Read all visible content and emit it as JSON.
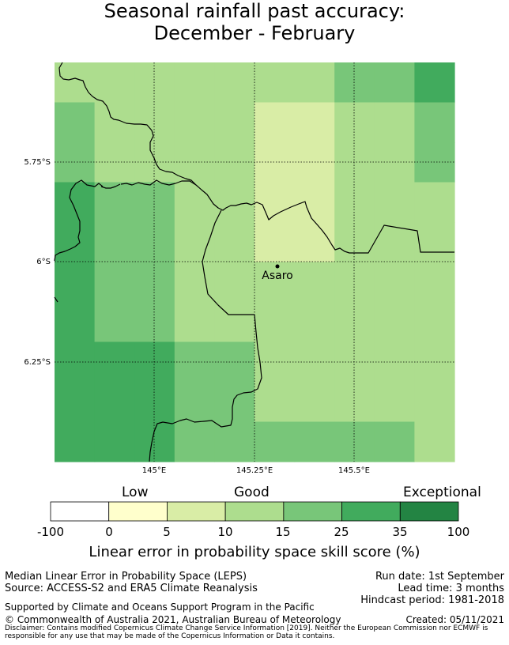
{
  "title": {
    "line1": "Seasonal rainfall past accuracy:",
    "line2": "December - February"
  },
  "map": {
    "axes": {
      "x_ticks": [
        "145°E",
        "145.25°E",
        "145.5°E"
      ],
      "y_ticks": [
        "5.75°S",
        "6°S",
        "6.25°S"
      ]
    },
    "place": {
      "name": "Asaro"
    },
    "grid_cells": {
      "cols": 10,
      "rows": 10,
      "values": [
        [
          10,
          10,
          10,
          10,
          10,
          10,
          10,
          15,
          15,
          25
        ],
        [
          15,
          10,
          10,
          10,
          10,
          5,
          5,
          10,
          10,
          15
        ],
        [
          15,
          10,
          10,
          10,
          10,
          5,
          5,
          10,
          10,
          15
        ],
        [
          25,
          15,
          15,
          10,
          10,
          5,
          5,
          10,
          10,
          10
        ],
        [
          25,
          15,
          15,
          10,
          10,
          5,
          5,
          10,
          10,
          10
        ],
        [
          25,
          15,
          15,
          10,
          10,
          10,
          10,
          10,
          10,
          10
        ],
        [
          25,
          15,
          15,
          10,
          10,
          10,
          10,
          10,
          10,
          10
        ],
        [
          25,
          25,
          25,
          15,
          15,
          10,
          10,
          10,
          10,
          10
        ],
        [
          25,
          25,
          25,
          15,
          15,
          10,
          10,
          10,
          10,
          10
        ],
        [
          25,
          25,
          25,
          15,
          15,
          15,
          15,
          15,
          15,
          10
        ]
      ]
    }
  },
  "colorbar": {
    "words": {
      "low": "Low",
      "good": "Good",
      "exceptional": "Exceptional"
    },
    "ticks": [
      "-100",
      "0",
      "5",
      "10",
      "15",
      "25",
      "35",
      "100"
    ],
    "colors": [
      "#ffffff",
      "#ffffcc",
      "#d9eda6",
      "#addd8e",
      "#78c679",
      "#41ab5d",
      "#238443"
    ],
    "title": "Linear error in probability space skill score (%)"
  },
  "footer": {
    "method": "Median Linear Error in Probability Space (LEPS)",
    "source": "Source: ACCESS-S2 and ERA5 Climate Reanalysis",
    "run_date": "Run date: 1st September",
    "lead_time": "Lead time: 3 months",
    "hindcast": "Hindcast period: 1981-2018",
    "support": "Supported by Climate and Oceans Support Program in the Pacific",
    "copyright": "© Commonwealth of Australia 2021, Australian Bureau of Meteorology",
    "created": "Created: 05/11/2021",
    "disclaimer": "Disclaimer: Contains modified Copernicus Climate Change Service Information [2019]. Neither the European Commission nor ECMWF is responsible for any use that may be made of the Copernicus Information or Data it contains."
  }
}
